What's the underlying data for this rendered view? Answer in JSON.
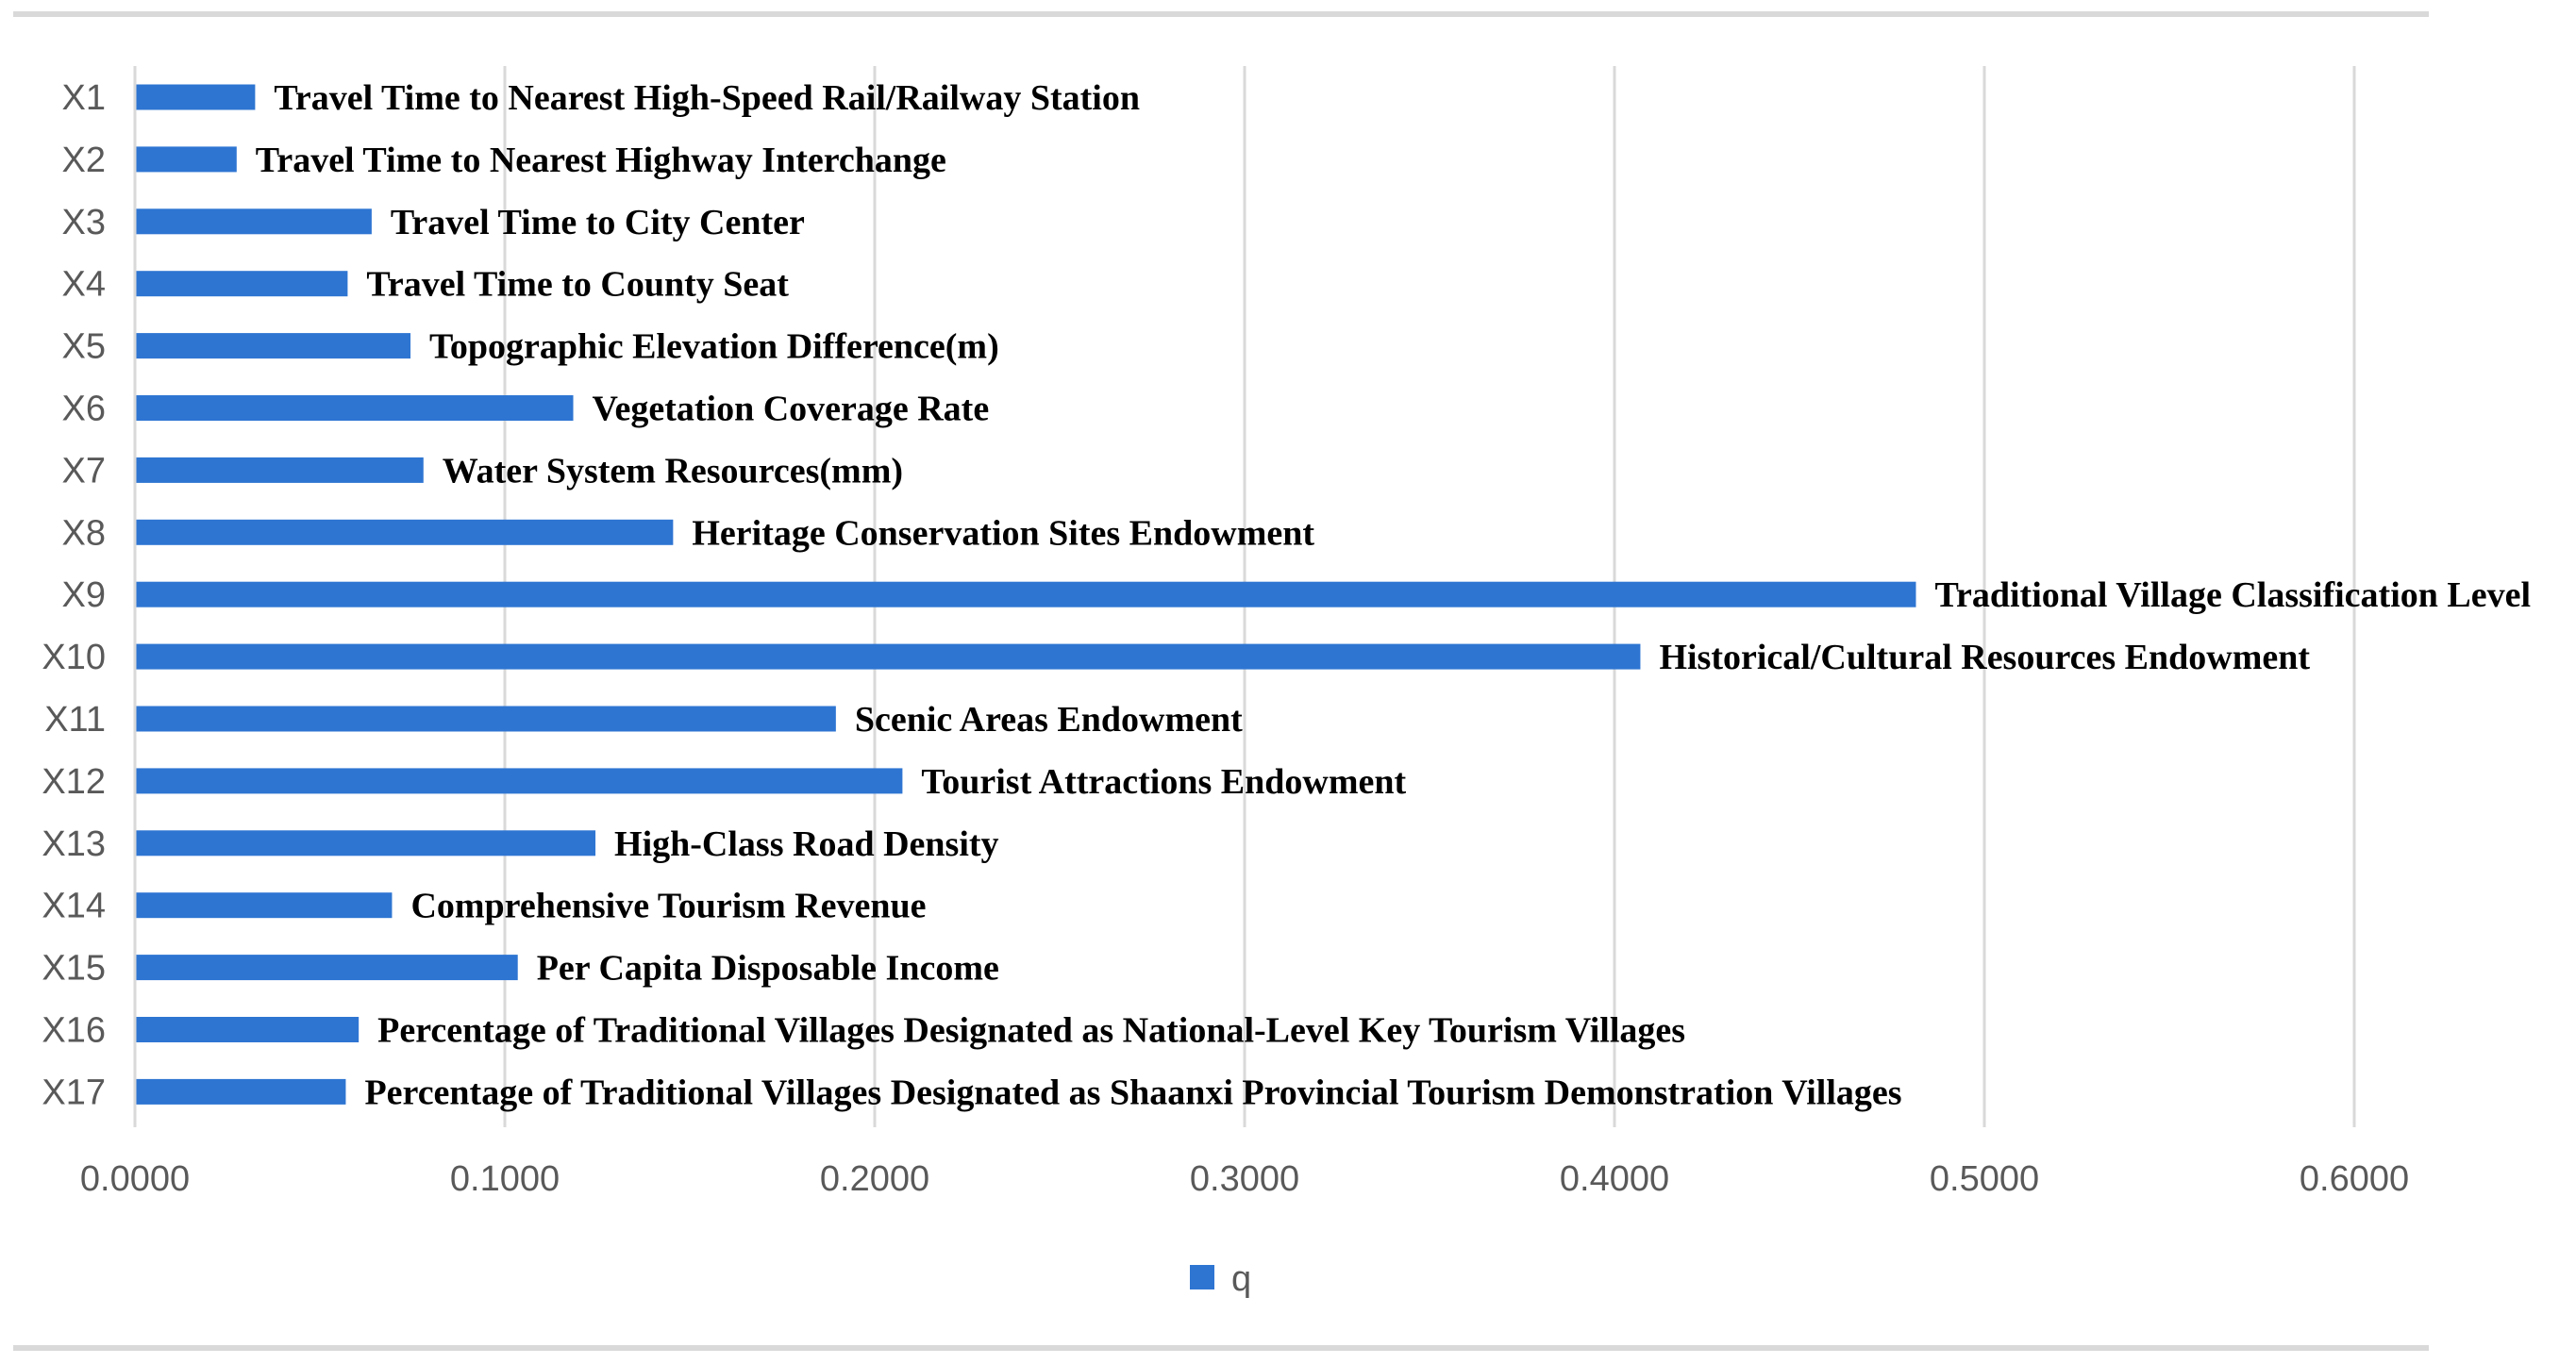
{
  "chart_data": {
    "type": "bar",
    "orientation": "horizontal",
    "categories": [
      "X1",
      "X2",
      "X3",
      "X4",
      "X5",
      "X6",
      "X7",
      "X8",
      "X9",
      "X10",
      "X11",
      "X12",
      "X13",
      "X14",
      "X15",
      "X16",
      "X17"
    ],
    "labels": [
      "Travel Time to Nearest High-Speed Rail/Railway Station",
      "Travel Time to Nearest Highway Interchange",
      "Travel Time to City Center",
      "Travel Time to County Seat",
      "Topographic Elevation Difference(m)",
      "Vegetation Coverage Rate",
      "Water System Resources(mm)",
      "Heritage Conservation Sites Endowment",
      "Traditional Village Classification Level",
      "Historical/Cultural Resources Endowment",
      "Scenic Areas Endowment",
      "Tourist Attractions Endowment",
      "High-Class Road Density",
      "Comprehensive Tourism Revenue",
      "Per Capita Disposable Income",
      "Percentage of Traditional Villages Designated as National-Level Key Tourism Villages",
      "Percentage of Traditional Villages Designated as Shaanxi Provincial Tourism Demonstration Villages"
    ],
    "series": [
      {
        "name": "q",
        "color": "#2e75d2",
        "values": [
          0.0325,
          0.0275,
          0.064,
          0.0575,
          0.0745,
          0.1185,
          0.078,
          0.1455,
          0.4815,
          0.407,
          0.1895,
          0.2075,
          0.1245,
          0.0695,
          0.1035,
          0.0605,
          0.057
        ]
      }
    ],
    "xlim": [
      0,
      0.6
    ],
    "xticks": [
      "0.0000",
      "0.1000",
      "0.2000",
      "0.3000",
      "0.4000",
      "0.5000",
      "0.6000"
    ],
    "grid": "vertical",
    "legend": "bottom-center"
  },
  "legend": {
    "label": "q"
  }
}
